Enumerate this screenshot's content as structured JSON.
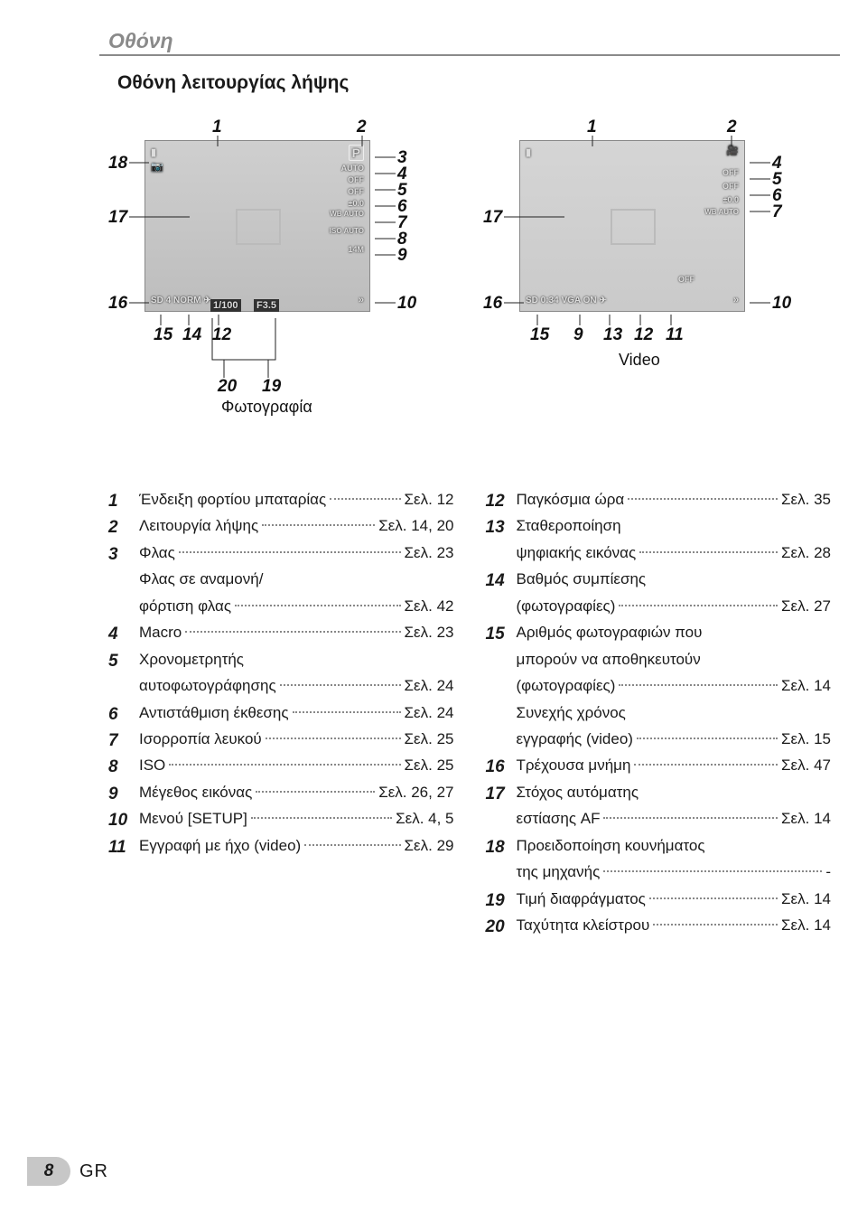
{
  "header": {
    "title": "Οθόνη"
  },
  "section_title": "Οθόνη λειτουργίας λήψης",
  "photo_label": "Φωτογραφία",
  "video_label": "Video",
  "left_screen": {
    "shutter": "1/100",
    "aperture": "F3.5",
    "mode": "P",
    "auto": "AUTO",
    "off": "OFF",
    "ev": "±0.0",
    "wb": "WB\nAUTO",
    "iso": "ISO\nAUTO",
    "size": "14M",
    "sd": "4",
    "norm": "NORM"
  },
  "right_screen": {
    "off": "OFF",
    "ev": "±0.0",
    "wb": "WB\nAUTO",
    "time": "0:34",
    "vga": "VGA",
    "on": "ON"
  },
  "callouts_left": {
    "n1": "1",
    "n2": "2",
    "n3": "3",
    "n4": "4",
    "n5": "5",
    "n6": "6",
    "n7": "7",
    "n8": "8",
    "n9": "9",
    "n10": "10",
    "n12": "12",
    "n14": "14",
    "n15": "15",
    "n16": "16",
    "n17": "17",
    "n18": "18",
    "n19": "19",
    "n20": "20"
  },
  "callouts_right": {
    "n1": "1",
    "n2": "2",
    "n4": "4",
    "n5": "5",
    "n6": "6",
    "n7": "7",
    "n9": "9",
    "n10": "10",
    "n11": "11",
    "n12": "12",
    "n13": "13",
    "n15": "15",
    "n16": "16",
    "n17": "17"
  },
  "col1": [
    {
      "n": "1",
      "label": "Ένδειξη φορτίου μπαταρίας",
      "page": "Σελ. 12"
    },
    {
      "n": "2",
      "label": "Λειτουργία λήψης",
      "page": "Σελ. 14, 20"
    },
    {
      "n": "3",
      "label": "Φλας",
      "page": "Σελ. 23"
    },
    {
      "n": "",
      "label": "Φλας σε αναμονή/",
      "page": ""
    },
    {
      "n": "",
      "label": "φόρτιση φλας",
      "page": "Σελ. 42"
    },
    {
      "n": "4",
      "label": "Macro",
      "page": "Σελ. 23"
    },
    {
      "n": "5",
      "label": "Χρονομετρητής",
      "page": ""
    },
    {
      "n": "",
      "label": "αυτοφωτογράφησης",
      "page": "Σελ. 24"
    },
    {
      "n": "6",
      "label": "Αντιστάθμιση έκθεσης",
      "page": "Σελ. 24"
    },
    {
      "n": "7",
      "label": "Ισορροπία λευκού",
      "page": "Σελ. 25"
    },
    {
      "n": "8",
      "label": "ISO",
      "page": "Σελ. 25"
    },
    {
      "n": "9",
      "label": "Μέγεθος εικόνας",
      "page": "Σελ. 26, 27"
    },
    {
      "n": "10",
      "label": "Μενού [SETUP]",
      "page": "Σελ. 4, 5"
    },
    {
      "n": "11",
      "label": "Εγγραφή με ήχο (video)",
      "page": "Σελ. 29"
    }
  ],
  "col2": [
    {
      "n": "12",
      "label": "Παγκόσμια ώρα",
      "page": "Σελ. 35"
    },
    {
      "n": "13",
      "label": "Σταθεροποίηση",
      "page": ""
    },
    {
      "n": "",
      "label": "ψηφιακής εικόνας",
      "page": "Σελ. 28"
    },
    {
      "n": "14",
      "label": "Βαθμός συμπίεσης",
      "page": ""
    },
    {
      "n": "",
      "label": "(φωτογραφίες)",
      "page": "Σελ. 27"
    },
    {
      "n": "15",
      "label": "Αριθμός φωτογραφιών που",
      "page": ""
    },
    {
      "n": "",
      "label": "μπορούν να αποθηκευτούν",
      "page": ""
    },
    {
      "n": "",
      "label": "(φωτογραφίες)",
      "page": "Σελ. 14"
    },
    {
      "n": "",
      "label": "Συνεχής χρόνος",
      "page": ""
    },
    {
      "n": "",
      "label": "εγγραφής (video)",
      "page": "Σελ. 15"
    },
    {
      "n": "16",
      "label": "Τρέχουσα μνήμη",
      "page": "Σελ. 47"
    },
    {
      "n": "17",
      "label": "Στόχος αυτόματης",
      "page": ""
    },
    {
      "n": "",
      "label": "εστίασης AF",
      "page": "Σελ. 14"
    },
    {
      "n": "18",
      "label": "Προειδοποίηση κουνήματος",
      "page": ""
    },
    {
      "n": "",
      "label": "της μηχανής",
      "page": "-"
    },
    {
      "n": "19",
      "label": "Τιμή διαφράγματος",
      "page": "Σελ. 14"
    },
    {
      "n": "20",
      "label": "Ταχύτητα κλείστρου",
      "page": "Σελ. 14"
    }
  ],
  "footer": {
    "page": "8",
    "lang": "GR"
  },
  "colors": {
    "gray": "#8a8a8a",
    "text": "#1a1a1a",
    "screen_bg": "#c0c0c0"
  }
}
